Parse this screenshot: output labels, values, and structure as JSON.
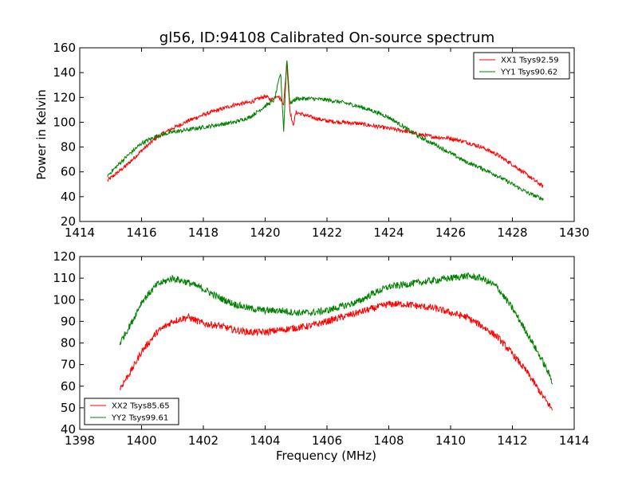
{
  "figure": {
    "title": "gl56, ID:94108 Calibrated On-source spectrum"
  },
  "chart_data": [
    {
      "type": "line",
      "title": "gl56, ID:94108 Calibrated On-source spectrum",
      "xlabel": "",
      "ylabel": "Power in Kelvin",
      "xlim": [
        1414,
        1430
      ],
      "ylim": [
        20,
        160
      ],
      "xticks": [
        1414,
        1416,
        1418,
        1420,
        1422,
        1424,
        1426,
        1428,
        1430
      ],
      "yticks": [
        20,
        40,
        60,
        80,
        100,
        120,
        140,
        160
      ],
      "legend_position": "top-right",
      "series": [
        {
          "name": "XX1 Tsys92.59",
          "color": "#ff0000",
          "x": [
            1414.9,
            1415.5,
            1416.0,
            1416.5,
            1417.0,
            1417.5,
            1418.0,
            1418.5,
            1419.0,
            1419.5,
            1420.0,
            1420.2,
            1420.4,
            1420.6,
            1420.7,
            1420.8,
            1420.9,
            1421.0,
            1421.5,
            1422.0,
            1422.5,
            1423.0,
            1423.5,
            1424.0,
            1424.5,
            1425.0,
            1425.5,
            1426.0,
            1426.5,
            1427.0,
            1427.5,
            1428.0,
            1428.5,
            1429.0
          ],
          "y": [
            53,
            65,
            77,
            88,
            95,
            101,
            106,
            110,
            114,
            116,
            121,
            118,
            122,
            115,
            148,
            110,
            97,
            108,
            104,
            101,
            100,
            99,
            97,
            95,
            93,
            90,
            88,
            87,
            84,
            80,
            74,
            66,
            57,
            48
          ]
        },
        {
          "name": "YY1 Tsys90.62",
          "color": "#008000",
          "x": [
            1414.9,
            1415.5,
            1416.0,
            1416.5,
            1417.0,
            1417.5,
            1418.0,
            1418.5,
            1419.0,
            1419.5,
            1420.0,
            1420.3,
            1420.5,
            1420.6,
            1420.7,
            1420.8,
            1421.0,
            1421.5,
            1422.0,
            1422.5,
            1423.0,
            1423.5,
            1424.0,
            1424.5,
            1425.0,
            1425.5,
            1426.0,
            1426.5,
            1427.0,
            1427.5,
            1428.0,
            1428.5,
            1429.0
          ],
          "y": [
            57,
            72,
            83,
            89,
            92,
            94,
            96,
            98,
            100,
            104,
            113,
            118,
            140,
            93,
            153,
            115,
            119,
            119,
            118,
            116,
            113,
            109,
            104,
            96,
            88,
            82,
            75,
            68,
            63,
            57,
            50,
            43,
            38
          ]
        }
      ]
    },
    {
      "type": "line",
      "title": "",
      "xlabel": "Frequency (MHz)",
      "ylabel": "",
      "xlim": [
        1398,
        1414
      ],
      "ylim": [
        40,
        120
      ],
      "xticks": [
        1398,
        1400,
        1402,
        1404,
        1406,
        1408,
        1410,
        1412,
        1414
      ],
      "yticks": [
        40,
        50,
        60,
        70,
        80,
        90,
        100,
        110,
        120
      ],
      "legend_position": "bottom-left",
      "series": [
        {
          "name": "XX2 Tsys85.65",
          "color": "#ff0000",
          "x": [
            1399.3,
            1399.7,
            1400.0,
            1400.5,
            1401.0,
            1401.5,
            1402.0,
            1402.5,
            1403.0,
            1403.5,
            1404.0,
            1404.5,
            1405.0,
            1405.5,
            1406.0,
            1406.5,
            1407.0,
            1407.5,
            1408.0,
            1408.5,
            1409.0,
            1409.5,
            1410.0,
            1410.5,
            1411.0,
            1411.5,
            1412.0,
            1412.5,
            1413.0,
            1413.3
          ],
          "y": [
            59,
            68,
            76,
            85,
            90,
            92,
            89,
            88,
            86,
            85,
            85,
            86,
            87,
            88,
            90,
            92,
            94,
            96,
            98,
            98,
            97,
            96,
            94,
            92,
            88,
            83,
            75,
            66,
            55,
            49
          ]
        },
        {
          "name": "YY2 Tsys99.61",
          "color": "#008000",
          "x": [
            1399.3,
            1399.7,
            1400.0,
            1400.5,
            1401.0,
            1401.5,
            1402.0,
            1402.5,
            1403.0,
            1403.5,
            1404.0,
            1404.5,
            1405.0,
            1405.5,
            1406.0,
            1406.5,
            1407.0,
            1407.5,
            1408.0,
            1408.5,
            1409.0,
            1409.5,
            1410.0,
            1410.5,
            1411.0,
            1411.5,
            1412.0,
            1412.5,
            1413.0,
            1413.3
          ],
          "y": [
            80,
            90,
            99,
            107,
            110,
            108,
            105,
            101,
            98,
            96,
            95,
            95,
            94,
            94,
            95,
            97,
            99,
            103,
            106,
            107,
            108,
            109,
            110,
            111,
            110,
            106,
            96,
            84,
            71,
            62
          ]
        }
      ]
    }
  ]
}
